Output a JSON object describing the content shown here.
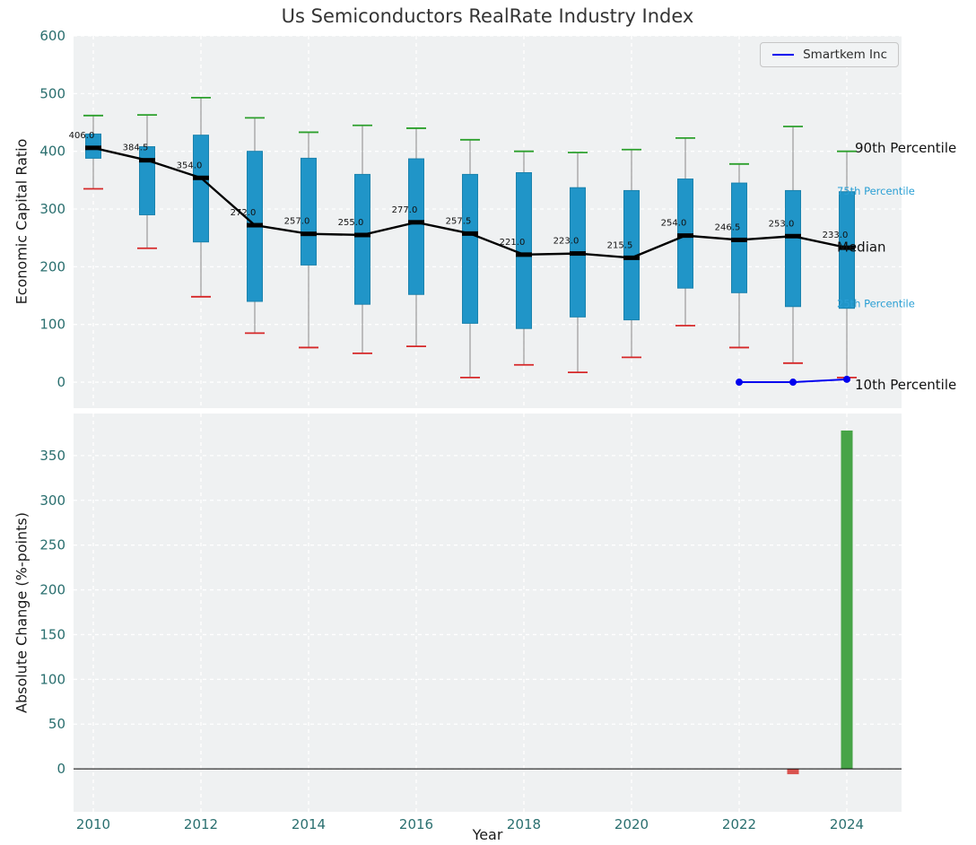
{
  "title": "Us Semiconductors RealRate Industry Index",
  "legend": {
    "label": "Smartkem Inc"
  },
  "colors": {
    "plot_bg": "#eff1f2",
    "grid": "#ffffff",
    "tick": "#2a6f6f",
    "box": "#2095c8",
    "box_edge": "#1b82ad",
    "whisker": "#9a9a9a",
    "cap_top": "#2ca02c",
    "cap_bottom": "#d62728",
    "median": "#000000",
    "smartkem": "#0000ee",
    "bar_up": "#47a447",
    "bar_down": "#d9534f",
    "annotation_blue": "#2a9fd4"
  },
  "chart_data": [
    {
      "type": "boxplot",
      "title": "Us Semiconductors RealRate Industry Index",
      "ylabel": "Economic Capital Ratio",
      "ylim": [
        -45,
        600
      ],
      "yticks": [
        0,
        100,
        200,
        300,
        400,
        500,
        600
      ],
      "grid": true,
      "legend_position": "upper right",
      "years": [
        2010,
        2011,
        2012,
        2013,
        2014,
        2015,
        2016,
        2017,
        2018,
        2019,
        2020,
        2021,
        2022,
        2023,
        2024
      ],
      "series": {
        "p90": [
          462,
          463,
          493,
          458,
          433,
          445,
          440,
          420,
          400,
          398,
          403,
          423,
          378,
          443,
          400
        ],
        "p75": [
          430,
          408,
          428,
          400,
          388,
          360,
          387,
          360,
          363,
          337,
          332,
          352,
          345,
          332,
          330
        ],
        "median": [
          406,
          384.5,
          354,
          272,
          257,
          255,
          277,
          257.5,
          221,
          223,
          215.5,
          254,
          246.5,
          253,
          233
        ],
        "p25": [
          388,
          290,
          243,
          140,
          203,
          135,
          152,
          102,
          93,
          113,
          108,
          163,
          155,
          131,
          128
        ],
        "p10": [
          335,
          232,
          148,
          85,
          60,
          50,
          62,
          8,
          30,
          17,
          43,
          98,
          60,
          33,
          8
        ]
      },
      "median_labels": [
        "406.0",
        "384.5",
        "354.0",
        "272.0",
        "257.0",
        "255.0",
        "277.0",
        "257.5",
        "221.0",
        "223.0",
        "215.5",
        "254.0",
        "246.5",
        "253.0",
        "233.0"
      ],
      "company_line": {
        "name": "Smartkem Inc",
        "x": [
          2022,
          2023,
          2024
        ],
        "y": [
          0,
          0,
          5
        ]
      },
      "annotations": [
        {
          "text": "90th Percentile",
          "value": 405,
          "style": "black-large",
          "x": 953
        },
        {
          "text": "75th Percentile",
          "value": 330,
          "style": "blue-small",
          "x": 933
        },
        {
          "text": "Median",
          "value": 233,
          "style": "black-large",
          "x": 933
        },
        {
          "text": "25th Percentile",
          "value": 135,
          "style": "blue-small",
          "x": 933
        },
        {
          "text": "10th Percentile",
          "value": -5,
          "style": "black-large",
          "x": 953
        }
      ]
    },
    {
      "type": "bar",
      "ylabel": "Absolute Change (%-points)",
      "xlabel": "Year",
      "ylim": [
        -48,
        397
      ],
      "yticks": [
        0,
        50,
        100,
        150,
        200,
        250,
        300,
        350
      ],
      "xticks": [
        2010,
        2012,
        2014,
        2016,
        2018,
        2020,
        2022,
        2024
      ],
      "grid": true,
      "bars": [
        {
          "year": 2023,
          "value": -6
        },
        {
          "year": 2024,
          "value": 378
        }
      ]
    }
  ]
}
